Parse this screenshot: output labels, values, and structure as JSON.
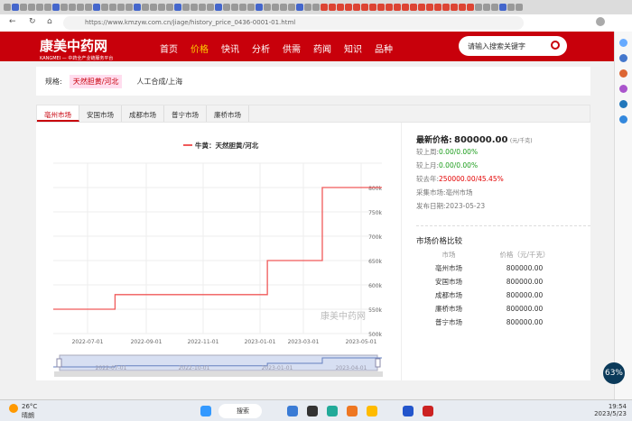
{
  "browser": {
    "url": "https://www.kmzyw.com.cn/jiage/history_price_0436-0001-01.html"
  },
  "header": {
    "logo": "康美中药网",
    "logo_sub": "KANGMEI — 中药全产业链服务平台",
    "nav": [
      "首页",
      "价格",
      "快讯",
      "分析",
      "供需",
      "药闻",
      "知识",
      "品种"
    ],
    "active_nav": "价格",
    "search_placeholder": "请输入搜索关键字"
  },
  "spec": {
    "label": "规格:",
    "options": [
      "天然胆黄/河北",
      "人工合成/上海"
    ],
    "selected": "天然胆黄/河北"
  },
  "market_tabs": [
    "亳州市场",
    "安国市场",
    "成都市场",
    "普宁市场",
    "廉桥市场"
  ],
  "active_market": "亳州市场",
  "info": {
    "latest_label": "最新价格:",
    "latest_value": "800000.00",
    "unit": "(元/千克)",
    "week_label": "较上周:",
    "week_value": "0.00/0.00%",
    "month_label": "较上月:",
    "month_value": "0.00/0.00%",
    "year_label": "较去年:",
    "year_value": "250000.00/45.45%",
    "market_label": "采集市场:",
    "market_value": "亳州市场",
    "date_label": "发布日期:",
    "date_value": "2023-05-23"
  },
  "compare": {
    "title": "市场价格比较",
    "headers": [
      "市场",
      "价格（元/千克）"
    ],
    "rows": [
      [
        "亳州市场",
        "800000.00"
      ],
      [
        "安国市场",
        "800000.00"
      ],
      [
        "成都市场",
        "800000.00"
      ],
      [
        "廉桥市场",
        "800000.00"
      ],
      [
        "普宁市场",
        "800000.00"
      ]
    ]
  },
  "chart_data": {
    "type": "line",
    "step": true,
    "legend": "牛黄：天然胆黄/河北",
    "legend_position": "top",
    "color": "#f05a5a",
    "x_ticks": [
      "2022-07-01",
      "2022-09-01",
      "2022-11-01",
      "2023-01-01",
      "2023-03-01",
      "2023-05-01"
    ],
    "y_ticks": [
      "500k",
      "550k",
      "600k",
      "650k",
      "700k",
      "750k",
      "800k"
    ],
    "ylim": [
      500000,
      800000
    ],
    "y_axis": "right",
    "grid": true,
    "points": [
      [
        "2022-05-26",
        550000
      ],
      [
        "2022-07-30",
        550000
      ],
      [
        "2022-07-30",
        580000
      ],
      [
        "2023-01-11",
        580000
      ],
      [
        "2023-01-11",
        650000
      ],
      [
        "2023-03-21",
        650000
      ],
      [
        "2023-03-21",
        800000
      ],
      [
        "2023-05-23",
        800000
      ]
    ],
    "slider_ticks": [
      "2022-07-01",
      "2022-10-01",
      "2023-01-01",
      "2023-04-01"
    ],
    "watermark": "康美中药网"
  },
  "taskbar": {
    "weather_temp": "26°C",
    "weather_text": "晴朗",
    "search": "搜索",
    "time": "19:54",
    "date": "2023/5/23",
    "battery": "63%"
  }
}
